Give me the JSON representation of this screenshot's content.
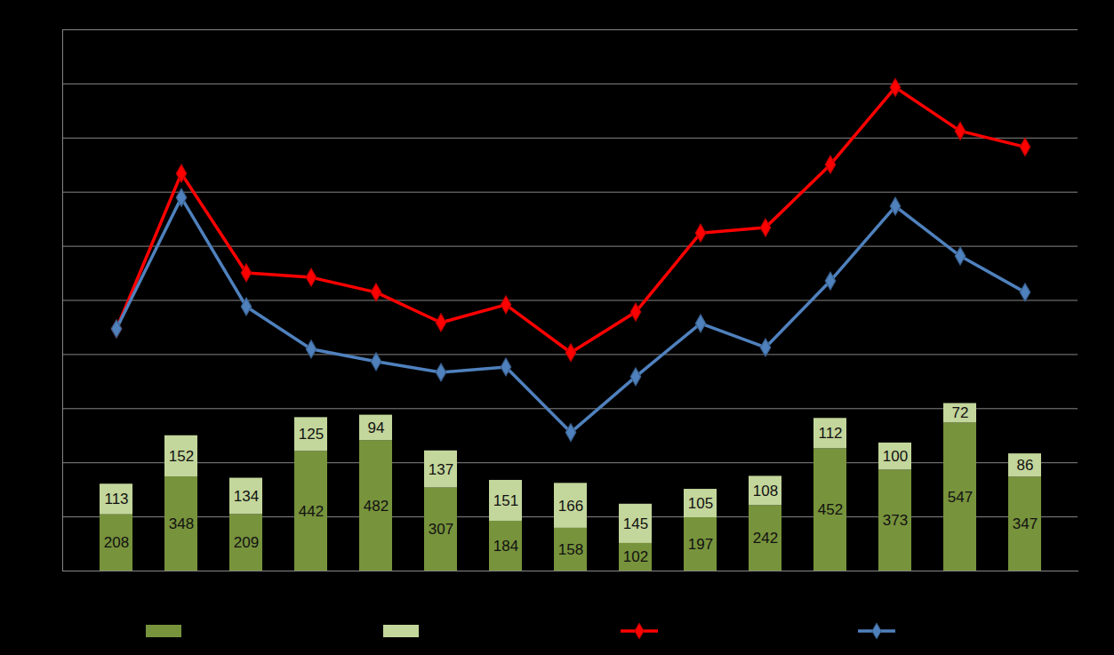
{
  "chart_data": {
    "type": "bar",
    "categories": [
      null,
      null,
      null,
      null,
      null,
      null,
      null,
      null,
      null,
      null,
      null,
      null,
      null,
      null,
      null
    ],
    "series": [
      {
        "type": "bar",
        "color": "#77933c",
        "values": [
          208,
          348,
          209,
          442,
          482,
          307,
          184,
          158,
          102,
          197,
          242,
          452,
          373,
          547,
          347
        ]
      },
      {
        "type": "bar",
        "color": "#c3d69b",
        "values": [
          113,
          152,
          134,
          125,
          94,
          137,
          151,
          166,
          145,
          105,
          108,
          112,
          100,
          72,
          86
        ]
      },
      {
        "type": "line",
        "color": "#ff0000",
        "marker": "diamond",
        "values": [
          895,
          1469,
          1102,
          1085,
          1030,
          918,
          984,
          807,
          957,
          1249,
          1269,
          1502,
          1787,
          1626,
          1567
        ]
      },
      {
        "type": "line",
        "color": "#4f81bd",
        "marker": "diamond",
        "values": [
          895,
          1380,
          977,
          820,
          774,
          734,
          754,
          512,
          718,
          915,
          826,
          1072,
          1348,
          1164,
          1030
        ]
      }
    ],
    "stacked": true,
    "data_labels": true,
    "ylim": [
      0,
      2000
    ],
    "yticks": [
      0,
      200,
      400,
      600,
      800,
      1000,
      1200,
      1400,
      1600,
      1800,
      2000
    ],
    "grid": true,
    "tick_labels": false,
    "legend": "bottom"
  }
}
